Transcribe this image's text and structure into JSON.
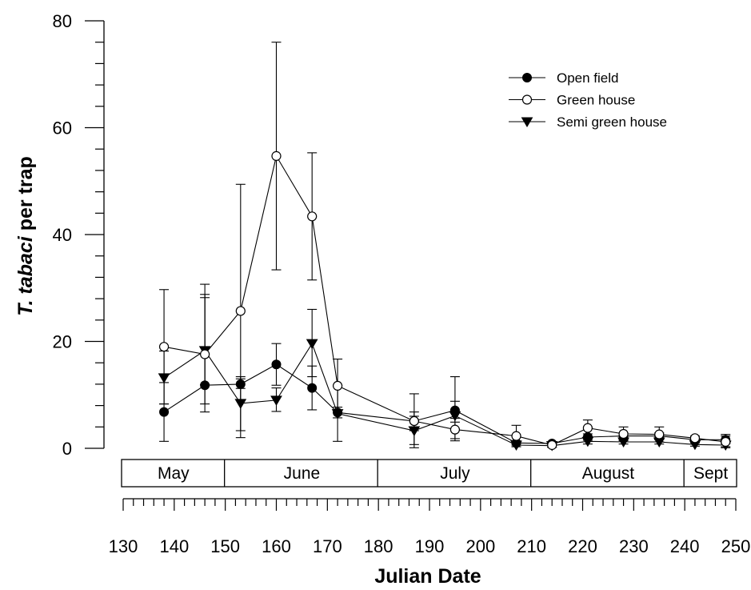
{
  "chart_data": {
    "type": "line",
    "xlabel": "Julian Date",
    "ylabel_italic": "T. tabaci",
    "ylabel_rest": " per trap",
    "ylim": [
      0,
      80
    ],
    "xlim": [
      130,
      250
    ],
    "yticks": [
      0,
      20,
      40,
      60,
      80
    ],
    "xticks": [
      130,
      140,
      150,
      160,
      170,
      180,
      190,
      200,
      210,
      220,
      230,
      240,
      250
    ],
    "months": [
      {
        "label": "May",
        "start": 130,
        "end": 150
      },
      {
        "label": "June",
        "start": 150,
        "end": 180
      },
      {
        "label": "July",
        "start": 180,
        "end": 210
      },
      {
        "label": "August",
        "start": 210,
        "end": 240
      },
      {
        "label": "Sept",
        "start": 240,
        "end": 250
      }
    ],
    "legend_position": "top-right",
    "series": [
      {
        "name": "Open field",
        "marker": "filled-circle",
        "points": [
          {
            "x": 138,
            "y": 6.8,
            "lo": 1.3,
            "hi": 12.3
          },
          {
            "x": 146,
            "y": 11.8,
            "lo": 6.8,
            "hi": 28.8
          },
          {
            "x": 153,
            "y": 12.0,
            "lo": 11.2,
            "hi": 13.0
          },
          {
            "x": 160,
            "y": 15.7,
            "lo": 11.8,
            "hi": 19.6
          },
          {
            "x": 167,
            "y": 11.3,
            "lo": 7.2,
            "hi": 15.4
          },
          {
            "x": 172,
            "y": 6.7,
            "lo": 5.7,
            "hi": 7.7
          },
          {
            "x": 187,
            "y": 5.1,
            "lo": 3.3,
            "hi": 6.8
          },
          {
            "x": 195,
            "y": 7.1,
            "lo": 4.9,
            "hi": 8.8
          },
          {
            "x": 207,
            "y": 1.0,
            "lo": 0.6,
            "hi": 1.4
          },
          {
            "x": 214,
            "y": 0.9,
            "lo": 0.6,
            "hi": 1.2
          },
          {
            "x": 221,
            "y": 2.1,
            "lo": 1.5,
            "hi": 2.7
          },
          {
            "x": 228,
            "y": 2.3,
            "lo": 1.7,
            "hi": 2.9
          },
          {
            "x": 235,
            "y": 2.3,
            "lo": 1.7,
            "hi": 2.9
          },
          {
            "x": 242,
            "y": 1.6,
            "lo": 1.2,
            "hi": 2.0
          },
          {
            "x": 248,
            "y": 1.6,
            "lo": 0.9,
            "hi": 2.3
          }
        ]
      },
      {
        "name": "Green house",
        "marker": "open-circle",
        "points": [
          {
            "x": 138,
            "y": 19.0,
            "lo": 8.3,
            "hi": 29.7
          },
          {
            "x": 146,
            "y": 17.6,
            "lo": 11.9,
            "hi": 30.7
          },
          {
            "x": 153,
            "y": 25.7,
            "lo": 2.0,
            "hi": 49.4
          },
          {
            "x": 160,
            "y": 54.7,
            "lo": 33.4,
            "hi": 76.0
          },
          {
            "x": 167,
            "y": 43.4,
            "lo": 31.5,
            "hi": 55.3
          },
          {
            "x": 172,
            "y": 11.7,
            "lo": 6.7,
            "hi": 16.7
          },
          {
            "x": 187,
            "y": 5.1,
            "lo": 0.1,
            "hi": 10.2
          },
          {
            "x": 195,
            "y": 3.5,
            "lo": 1.4,
            "hi": 5.6
          },
          {
            "x": 207,
            "y": 2.3,
            "lo": 0.3,
            "hi": 4.3
          },
          {
            "x": 214,
            "y": 0.6,
            "lo": 0.2,
            "hi": 1.0
          },
          {
            "x": 221,
            "y": 3.8,
            "lo": 2.3,
            "hi": 5.3
          },
          {
            "x": 228,
            "y": 2.7,
            "lo": 1.4,
            "hi": 4.0
          },
          {
            "x": 235,
            "y": 2.6,
            "lo": 1.2,
            "hi": 4.0
          },
          {
            "x": 242,
            "y": 1.9,
            "lo": 1.5,
            "hi": 2.3
          },
          {
            "x": 248,
            "y": 1.2,
            "lo": 0.1,
            "hi": 2.6
          }
        ]
      },
      {
        "name": "Semi green house",
        "marker": "filled-triangle-down",
        "points": [
          {
            "x": 138,
            "y": 13.2,
            "lo": 8.3,
            "hi": 18.2
          },
          {
            "x": 146,
            "y": 18.3,
            "lo": 8.3,
            "hi": 28.2
          },
          {
            "x": 153,
            "y": 8.4,
            "lo": 3.3,
            "hi": 13.4
          },
          {
            "x": 160,
            "y": 9.0,
            "lo": 6.9,
            "hi": 11.3
          },
          {
            "x": 167,
            "y": 19.6,
            "lo": 13.4,
            "hi": 26.0
          },
          {
            "x": 172,
            "y": 6.5,
            "lo": 1.3,
            "hi": 11.7
          },
          {
            "x": 187,
            "y": 3.3,
            "lo": 0.7,
            "hi": 6.0
          },
          {
            "x": 195,
            "y": 6.1,
            "lo": 1.8,
            "hi": 13.4
          },
          {
            "x": 207,
            "y": 0.6,
            "lo": 0.3,
            "hi": 0.9
          },
          {
            "x": 214,
            "y": 0.5,
            "lo": 0.2,
            "hi": 0.8
          },
          {
            "x": 221,
            "y": 1.3,
            "lo": 0.8,
            "hi": 1.8
          },
          {
            "x": 228,
            "y": 1.2,
            "lo": 0.8,
            "hi": 1.6
          },
          {
            "x": 235,
            "y": 1.2,
            "lo": 0.8,
            "hi": 1.6
          },
          {
            "x": 242,
            "y": 0.7,
            "lo": 0.4,
            "hi": 1.0
          },
          {
            "x": 248,
            "y": 0.6,
            "lo": 0.3,
            "hi": 0.9
          }
        ]
      }
    ]
  }
}
